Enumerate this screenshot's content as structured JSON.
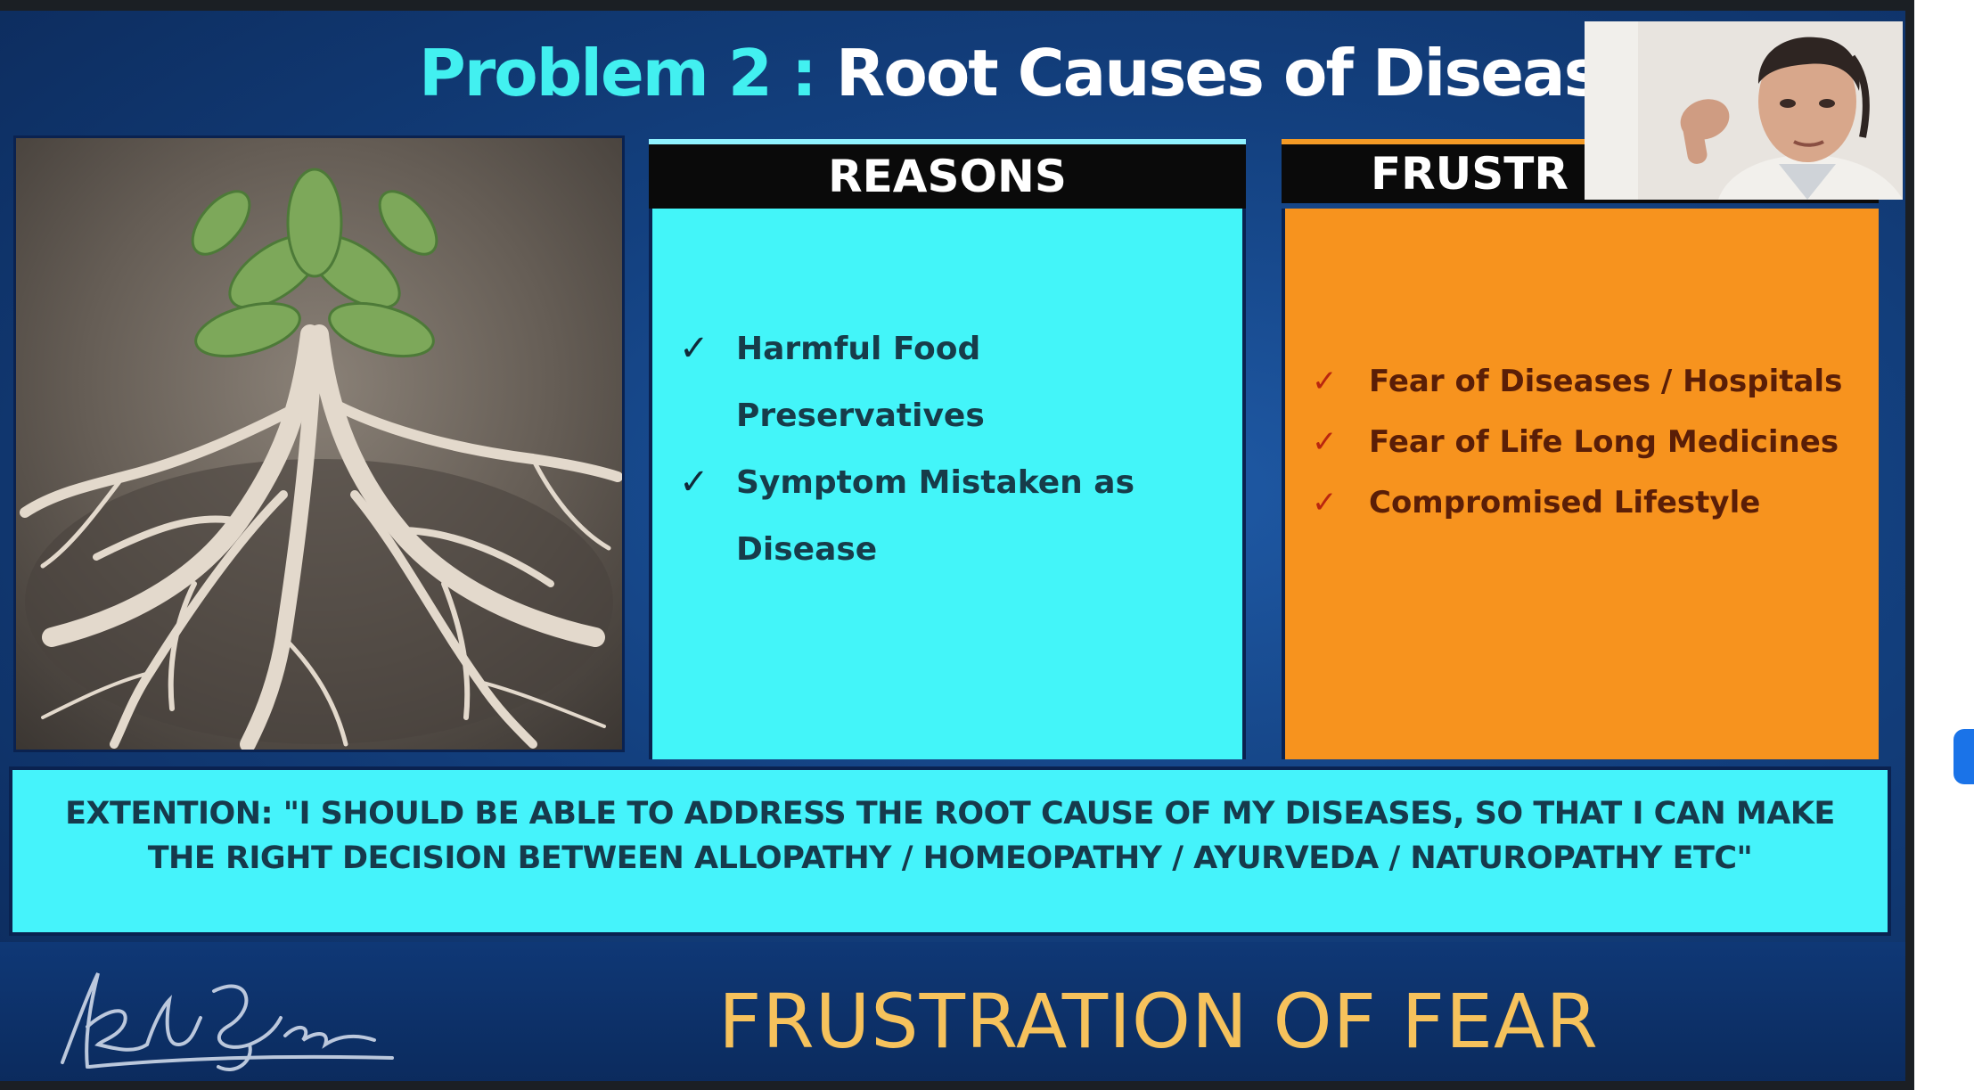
{
  "slide": {
    "title_part1": "Problem 2 : ",
    "title_part2": "Root Causes of Diseases",
    "reasons": {
      "heading": "REASONS",
      "items": [
        {
          "line1": "Harmful Food",
          "line2": "Preservatives"
        },
        {
          "line1": "Symptom Mistaken as",
          "line2": "Disease"
        }
      ]
    },
    "frustrations": {
      "heading": "FRUSTR",
      "items": [
        "Fear of Diseases / Hospitals",
        "Fear of Life Long Medicines",
        "Compromised Lifestyle"
      ]
    },
    "extention_text": "EXTENTION: \"I SHOULD BE ABLE TO ADDRESS THE ROOT CAUSE OF MY DISEASES, SO THAT I CAN MAKE THE RIGHT DECISION BETWEEN ALLOPATHY / HOMEOPATHY / AYURVEDA / NATUROPATHY ETC\"",
    "footer_title": "FRUSTRATION OF FEAR",
    "check_glyph": "✓"
  },
  "colors": {
    "title_accent": "#42f0f0",
    "reasons_panel": "#43f5f9",
    "frustrations_panel": "#f7931e",
    "footer_title": "#f6c25c",
    "background": "#13407f"
  }
}
